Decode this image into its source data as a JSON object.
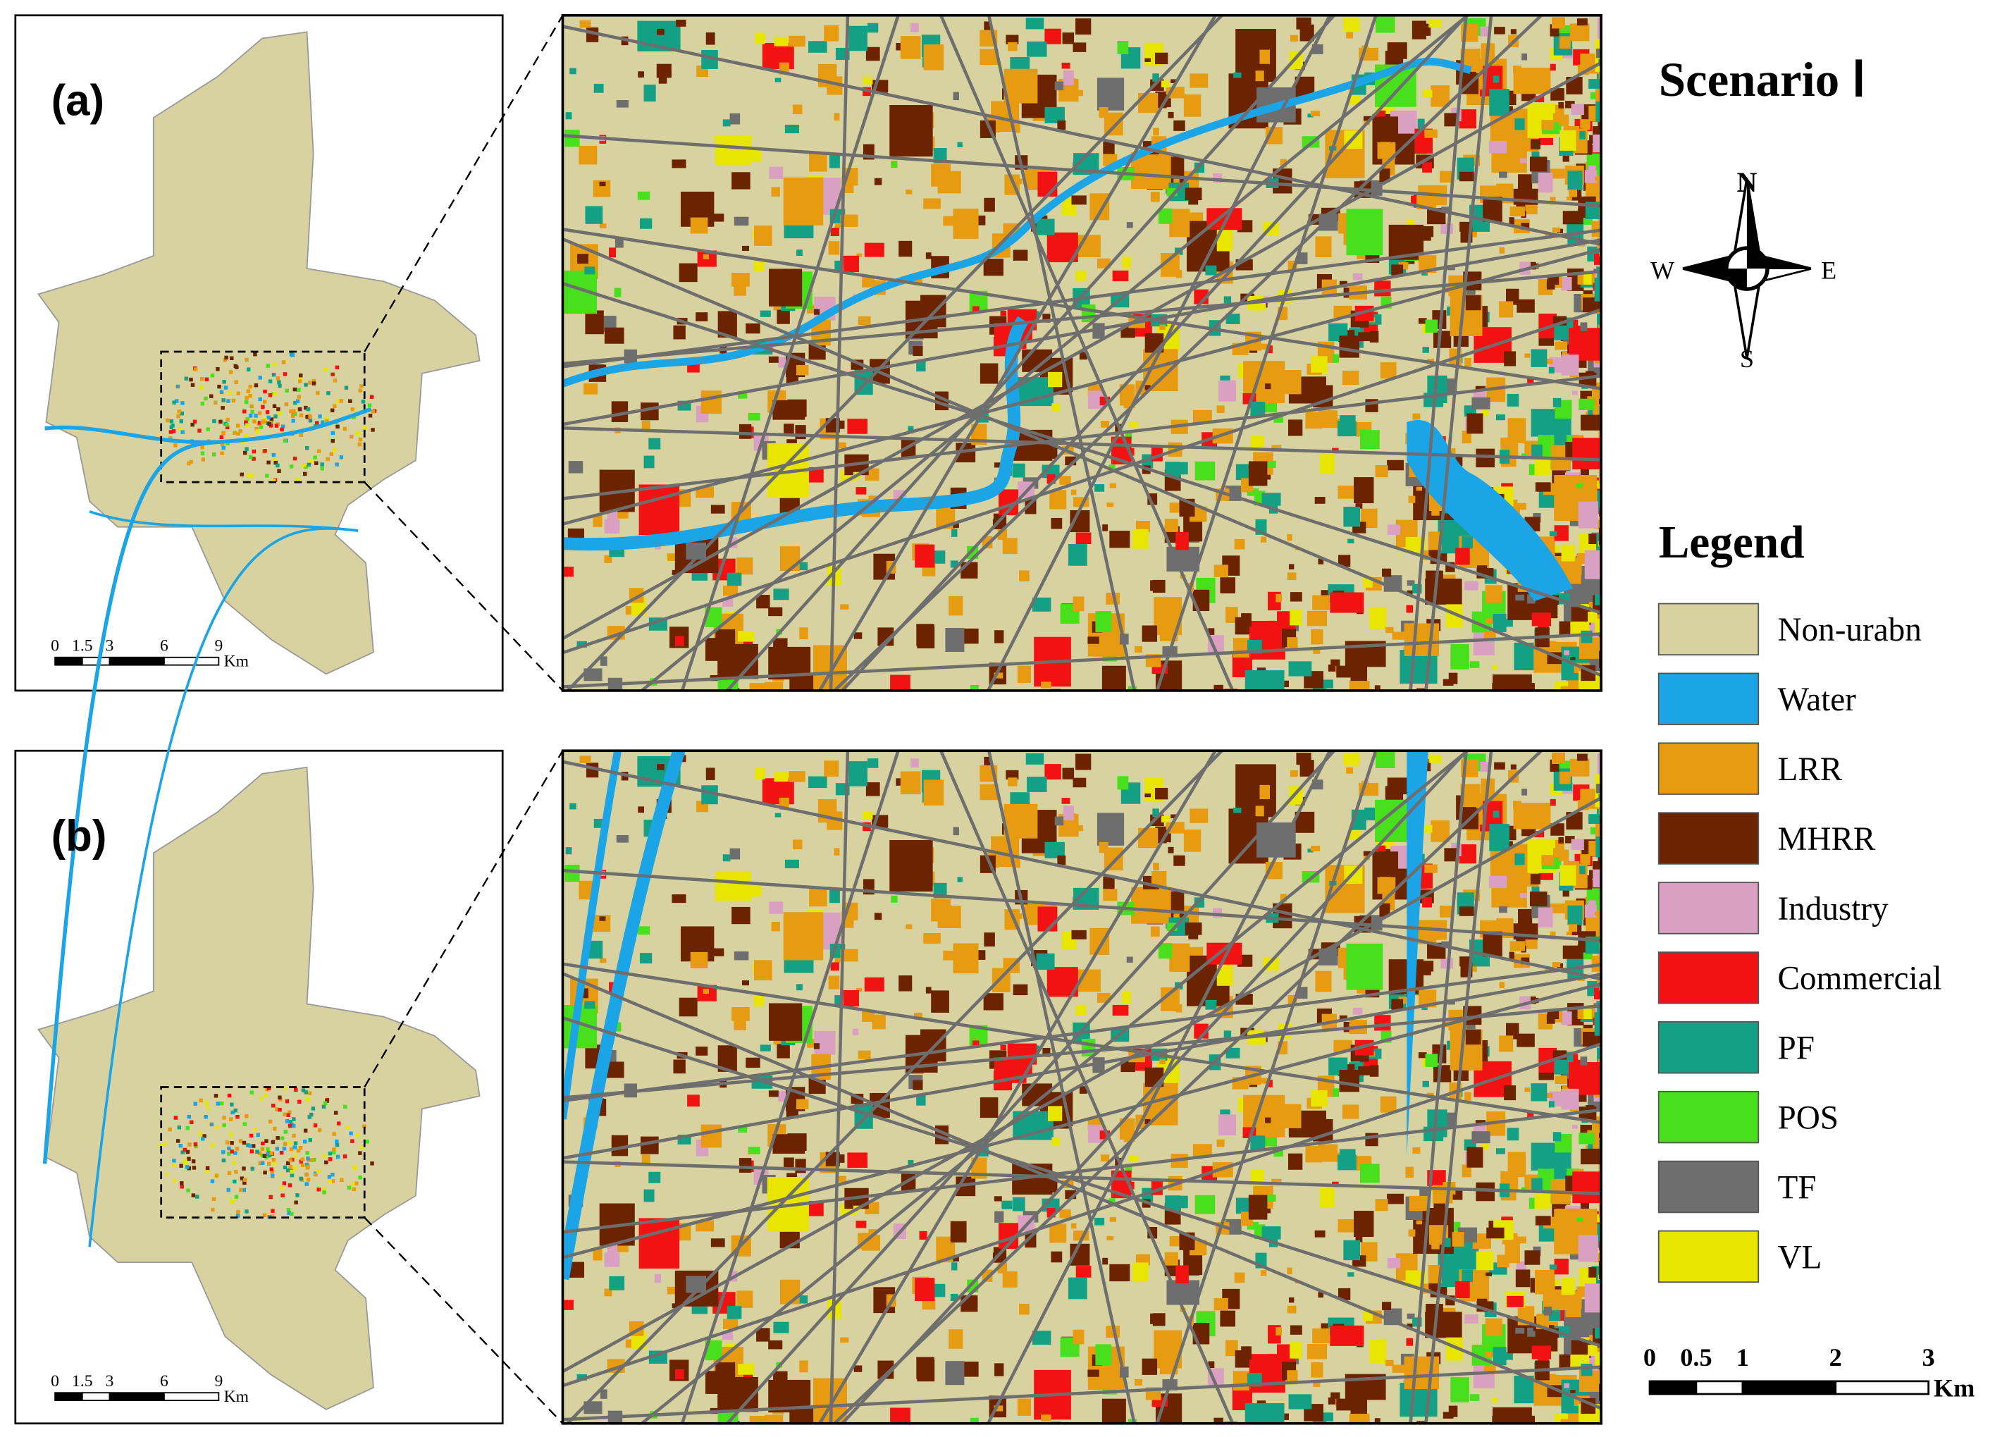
{
  "panels": [
    {
      "label": "(a)",
      "scale_bar": {
        "labels": [
          "0",
          "1.5",
          "3",
          "6",
          "9"
        ],
        "unit": "Km"
      }
    },
    {
      "label": "(b)",
      "scale_bar": {
        "labels": [
          "0",
          "1.5",
          "3",
          "6",
          "9"
        ],
        "unit": "Km"
      }
    }
  ],
  "title": "Scenario Ⅰ",
  "compass": {
    "north": "N",
    "south": "S",
    "west": "W",
    "east": "E"
  },
  "legend": {
    "title": "Legend",
    "items": [
      {
        "label": "Non-urabn",
        "color": "#d7d2a0"
      },
      {
        "label": "Water",
        "color": "#1ba4e6"
      },
      {
        "label": "LRR",
        "color": "#e69b10"
      },
      {
        "label": "MHRR",
        "color": "#6b2300"
      },
      {
        "label": "Industry",
        "color": "#d9a0c2"
      },
      {
        "label": "Commercial",
        "color": "#f31212"
      },
      {
        "label": "PF",
        "color": "#14a084"
      },
      {
        "label": "POS",
        "color": "#48e01c"
      },
      {
        "label": "TF",
        "color": "#6e6e6e"
      },
      {
        "label": "VL",
        "color": "#e8e600"
      }
    ]
  },
  "scale_bar": {
    "labels": [
      "0",
      "0.5",
      "1",
      "2",
      "3"
    ],
    "unit": "Km"
  }
}
